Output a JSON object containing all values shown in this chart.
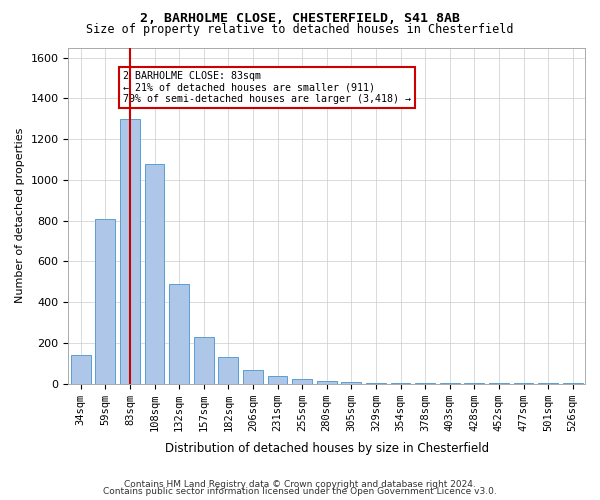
{
  "title1": "2, BARHOLME CLOSE, CHESTERFIELD, S41 8AB",
  "title2": "Size of property relative to detached houses in Chesterfield",
  "xlabel": "Distribution of detached houses by size in Chesterfield",
  "ylabel": "Number of detached properties",
  "categories": [
    "34sqm",
    "59sqm",
    "83sqm",
    "108sqm",
    "132sqm",
    "157sqm",
    "182sqm",
    "206sqm",
    "231sqm",
    "255sqm",
    "280sqm",
    "305sqm",
    "329sqm",
    "354sqm",
    "378sqm",
    "403sqm",
    "428sqm",
    "452sqm",
    "477sqm",
    "501sqm",
    "526sqm"
  ],
  "values": [
    140,
    810,
    1300,
    1080,
    490,
    230,
    130,
    65,
    40,
    25,
    15,
    10,
    5,
    5,
    5,
    3,
    2,
    2,
    2,
    2,
    2
  ],
  "bar_color": "#aec6e8",
  "bar_edge_color": "#5a9fd4",
  "vline_x": 2,
  "vline_color": "#cc0000",
  "annotation_text": "2 BARHOLME CLOSE: 83sqm\n← 21% of detached houses are smaller (911)\n79% of semi-detached houses are larger (3,418) →",
  "annotation_box_color": "#ffffff",
  "annotation_box_edge": "#cc0000",
  "ylim": [
    0,
    1650
  ],
  "footer1": "Contains HM Land Registry data © Crown copyright and database right 2024.",
  "footer2": "Contains public sector information licensed under the Open Government Licence v3.0.",
  "bg_color": "#ffffff",
  "grid_color": "#cccccc"
}
